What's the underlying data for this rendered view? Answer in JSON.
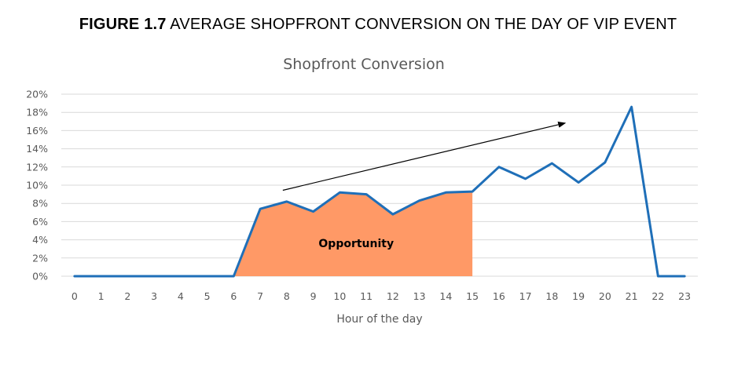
{
  "figure": {
    "number": "FIGURE 1.7",
    "caption": "AVERAGE SHOPFRONT CONVERSION ON THE DAY OF VIP EVENT"
  },
  "chart_data": {
    "type": "line",
    "title": "Shopfront Conversion",
    "xlabel": "Hour of the day",
    "ylabel": "",
    "x": [
      0,
      1,
      2,
      3,
      4,
      5,
      6,
      7,
      8,
      9,
      10,
      11,
      12,
      13,
      14,
      15,
      16,
      17,
      18,
      19,
      20,
      21,
      22,
      23
    ],
    "series": [
      {
        "values": [
          0,
          0,
          0,
          0,
          0,
          0,
          0,
          7.4,
          8.2,
          7.1,
          9.2,
          9.0,
          6.8,
          8.3,
          9.2,
          9.3,
          12.0,
          10.7,
          12.4,
          10.3,
          12.5,
          18.6,
          0,
          0
        ]
      }
    ],
    "ylim": [
      0,
      20
    ],
    "yticks": [
      0,
      2,
      4,
      6,
      8,
      10,
      12,
      14,
      16,
      18,
      20
    ],
    "ytick_labels": [
      "0%",
      "2%",
      "4%",
      "6%",
      "8%",
      "10%",
      "12%",
      "14%",
      "16%",
      "18%",
      "20%"
    ],
    "grid": true,
    "line_color": "#1F6FB8",
    "fill_color": "#FF9966",
    "shaded_region": {
      "from": 6,
      "to": 15,
      "label": "Opportunity"
    },
    "trend_arrow": {
      "from": [
        8,
        9.7
      ],
      "to": [
        18.5,
        17.0
      ]
    }
  }
}
